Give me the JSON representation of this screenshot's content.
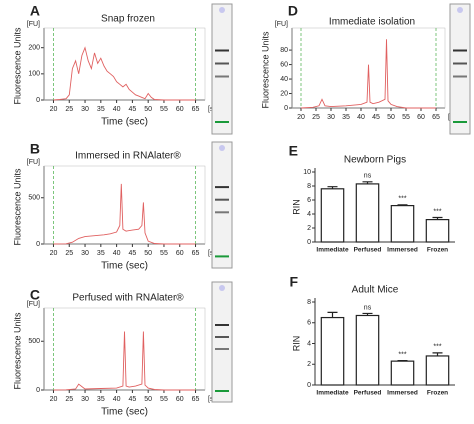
{
  "chart_data": [
    {
      "type": "line",
      "panel": "A",
      "title": "Snap frozen",
      "ylabel": "Fluorescence Units",
      "xlabel": "Time (sec)",
      "y_unit": "[FU]",
      "x_unit": "[s]",
      "color": "#e06060",
      "x": [
        20,
        22,
        24,
        25,
        26,
        27,
        28,
        29,
        30,
        31,
        32,
        33,
        34,
        35,
        36,
        37,
        38,
        39,
        40,
        41,
        42,
        43,
        44,
        45,
        46,
        47,
        48,
        49,
        50,
        51,
        52,
        55,
        60,
        65
      ],
      "values": [
        0,
        2,
        5,
        20,
        120,
        150,
        100,
        170,
        200,
        150,
        120,
        180,
        140,
        160,
        130,
        110,
        100,
        90,
        70,
        60,
        50,
        60,
        40,
        30,
        20,
        15,
        10,
        5,
        25,
        10,
        2,
        0,
        0,
        0
      ],
      "xlim": [
        17,
        68
      ],
      "ylim": [
        0,
        260
      ],
      "xticks": [
        20,
        25,
        30,
        35,
        40,
        45,
        50,
        55,
        60,
        65
      ],
      "yticks": [
        0,
        100,
        200
      ]
    },
    {
      "type": "line",
      "panel": "B",
      "title": "Immersed in RNAlater®",
      "ylabel": "Fluorescence Units",
      "xlabel": "Time (sec)",
      "y_unit": "[FU]",
      "x_unit": "[s]",
      "color": "#e06060",
      "x": [
        20,
        24,
        26,
        28,
        30,
        33,
        36,
        38,
        40,
        41,
        41.5,
        42,
        43,
        45,
        47,
        48,
        48.5,
        49,
        50,
        52,
        55,
        60,
        65
      ],
      "values": [
        0,
        2,
        20,
        60,
        80,
        90,
        100,
        110,
        130,
        200,
        650,
        160,
        140,
        150,
        160,
        200,
        450,
        120,
        30,
        5,
        0,
        0,
        0
      ],
      "xlim": [
        17,
        68
      ],
      "ylim": [
        0,
        800
      ],
      "xticks": [
        20,
        25,
        30,
        35,
        40,
        45,
        50,
        55,
        60,
        65
      ],
      "yticks": [
        0,
        500
      ]
    },
    {
      "type": "line",
      "panel": "C",
      "title": "Perfused with RNAlater®",
      "ylabel": "Fluorescence Units",
      "xlabel": "Time (sec)",
      "y_unit": "[FU]",
      "x_unit": "[s]",
      "color": "#e06060",
      "x": [
        20,
        24,
        27,
        28,
        30,
        35,
        40,
        42,
        42.5,
        43,
        44,
        46,
        48,
        48.5,
        49,
        50,
        52,
        55,
        60,
        65
      ],
      "values": [
        0,
        2,
        10,
        60,
        10,
        15,
        20,
        40,
        600,
        40,
        30,
        40,
        60,
        600,
        50,
        20,
        5,
        0,
        0,
        0
      ],
      "xlim": [
        17,
        68
      ],
      "ylim": [
        0,
        800
      ],
      "xticks": [
        20,
        25,
        30,
        35,
        40,
        45,
        50,
        55,
        60,
        65
      ],
      "yticks": [
        0,
        500
      ]
    },
    {
      "type": "line",
      "panel": "D",
      "title": "Immediate isolation",
      "ylabel": "Fluorescence Units",
      "y_unit": "[FU]",
      "x_unit": "[s]",
      "color": "#e06060",
      "x": [
        20,
        24,
        26,
        27,
        28,
        30,
        35,
        40,
        42,
        42.5,
        43,
        44,
        46,
        48,
        48.5,
        49,
        50,
        52,
        55,
        60,
        65
      ],
      "values": [
        0,
        1,
        3,
        12,
        3,
        2,
        3,
        5,
        8,
        60,
        8,
        6,
        8,
        12,
        95,
        10,
        5,
        2,
        0,
        0,
        0
      ],
      "xlim": [
        17,
        68
      ],
      "ylim": [
        0,
        105
      ],
      "xticks": [
        20,
        25,
        30,
        35,
        40,
        45,
        50,
        55,
        60,
        65
      ],
      "yticks": [
        0,
        20,
        40,
        60,
        80
      ]
    },
    {
      "type": "bar",
      "panel": "E",
      "title": "Newborn Pigs",
      "ylabel": "RIN",
      "color": "#ffffff",
      "categories": [
        "Immediate",
        "Perfused",
        "Immersed",
        "Frozen"
      ],
      "values": [
        7.6,
        8.3,
        5.2,
        3.2
      ],
      "errors": [
        0.3,
        0.3,
        0.1,
        0.3
      ],
      "annotations": [
        null,
        "ns",
        "***",
        "***"
      ],
      "ylim": [
        0,
        10
      ],
      "yticks": [
        0,
        2,
        4,
        6,
        8,
        10
      ]
    },
    {
      "type": "bar",
      "panel": "F",
      "title": "Adult Mice",
      "ylabel": "RIN",
      "color": "#ffffff",
      "categories": [
        "Immediate",
        "Perfused",
        "Immersed",
        "Frozen"
      ],
      "values": [
        6.5,
        6.7,
        2.3,
        2.8
      ],
      "errors": [
        0.5,
        0.2,
        0.05,
        0.3
      ],
      "annotations": [
        null,
        "ns",
        "***",
        "***"
      ],
      "ylim": [
        0,
        8
      ],
      "yticks": [
        0,
        2,
        4,
        6,
        8
      ]
    }
  ]
}
